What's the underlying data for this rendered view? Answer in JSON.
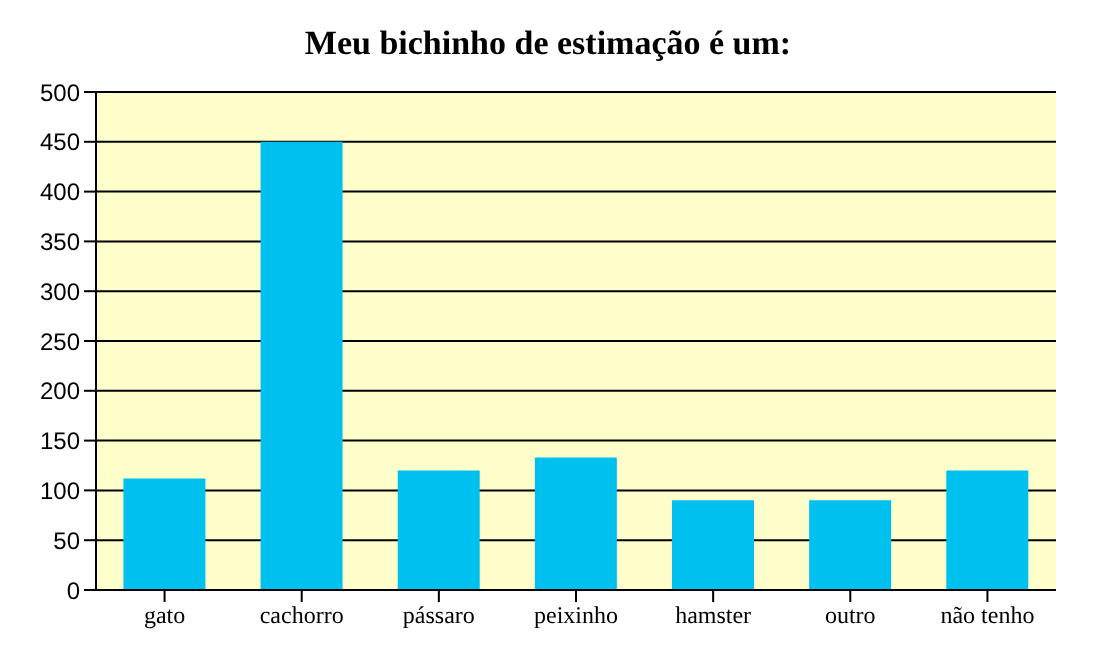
{
  "chart_data": {
    "type": "bar",
    "title": "Meu bichinho de estimação é um:",
    "categories": [
      "gato",
      "cachorro",
      "pássaro",
      "peixinho",
      "hamster",
      "outro",
      "não tenho"
    ],
    "values": [
      112,
      450,
      120,
      133,
      90,
      90,
      120
    ],
    "color": "#00c0f0",
    "ylim": [
      0,
      500
    ],
    "yticks": [
      0,
      50,
      100,
      150,
      200,
      250,
      300,
      350,
      400,
      450,
      500
    ],
    "grid": "y"
  }
}
